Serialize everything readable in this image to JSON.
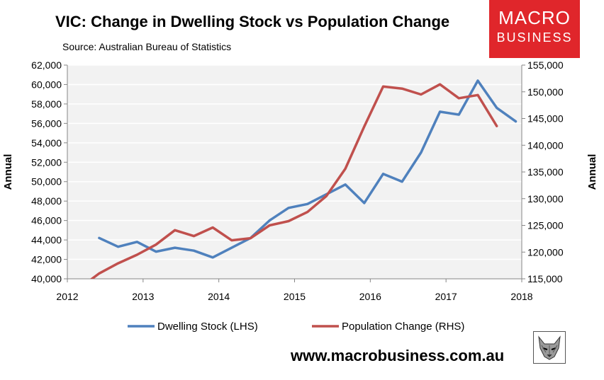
{
  "header": {
    "title": "VIC: Change in Dwelling Stock vs Population Change",
    "source": "Source: Australian Bureau of Statistics"
  },
  "logo": {
    "line1": "MACRO",
    "line2": "BUSINESS",
    "color": "#e0262b"
  },
  "footer": {
    "url": "www.macrobusiness.com.au"
  },
  "colors": {
    "plot_bg": "#f2f2f2",
    "dwelling": "#4f81bd",
    "population": "#c0504d",
    "grid": "#ffffff"
  },
  "chart_data": {
    "type": "line",
    "title": "VIC: Change in Dwelling Stock vs Population Change",
    "xlabel": "",
    "ylabel_left": "Annual",
    "ylabel_right": "Annual",
    "xlim": [
      2012,
      2018
    ],
    "ylim_left": [
      40000,
      62000
    ],
    "ylim_right": [
      115000,
      155000
    ],
    "x_ticks": [
      "2012",
      "2013",
      "2014",
      "2015",
      "2016",
      "2017",
      "2018"
    ],
    "y_ticks_left": [
      "40,000",
      "42,000",
      "44,000",
      "46,000",
      "48,000",
      "50,000",
      "52,000",
      "54,000",
      "56,000",
      "58,000",
      "60,000",
      "62,000"
    ],
    "y_ticks_right": [
      "115,000",
      "120,000",
      "125,000",
      "130,000",
      "135,000",
      "140,000",
      "145,000",
      "150,000",
      "155,000"
    ],
    "legend_position": "bottom",
    "grid": true,
    "series": [
      {
        "name": "Dwelling Stock (LHS)",
        "axis": "left",
        "color": "#4f81bd",
        "x": [
          2012.42,
          2012.67,
          2012.92,
          2013.17,
          2013.42,
          2013.67,
          2013.92,
          2014.17,
          2014.42,
          2014.67,
          2014.92,
          2015.17,
          2015.42,
          2015.67,
          2015.92,
          2016.17,
          2016.42,
          2016.67,
          2016.92,
          2017.17,
          2017.42,
          2017.67,
          2017.92
        ],
        "values": [
          44200,
          43300,
          43800,
          42800,
          43200,
          42900,
          42200,
          43200,
          44200,
          46000,
          47300,
          47700,
          48700,
          49700,
          47800,
          50800,
          50000,
          53000,
          57200,
          56900,
          60400,
          57600,
          56200
        ]
      },
      {
        "name": "Population Change (RHS)",
        "axis": "right",
        "color": "#c0504d",
        "x": [
          2012.25,
          2012.42,
          2012.67,
          2012.92,
          2013.17,
          2013.42,
          2013.67,
          2013.92,
          2014.17,
          2014.42,
          2014.67,
          2014.92,
          2015.17,
          2015.42,
          2015.67,
          2015.92,
          2016.17,
          2016.42,
          2016.67,
          2016.92,
          2017.17,
          2017.42,
          2017.67
        ],
        "values": [
          114200,
          116000,
          117900,
          119500,
          121400,
          124100,
          123000,
          124600,
          122200,
          122600,
          125000,
          125800,
          127500,
          130500,
          135600,
          143500,
          151000,
          150600,
          149500,
          151400,
          148800,
          149400,
          143600
        ]
      }
    ]
  }
}
